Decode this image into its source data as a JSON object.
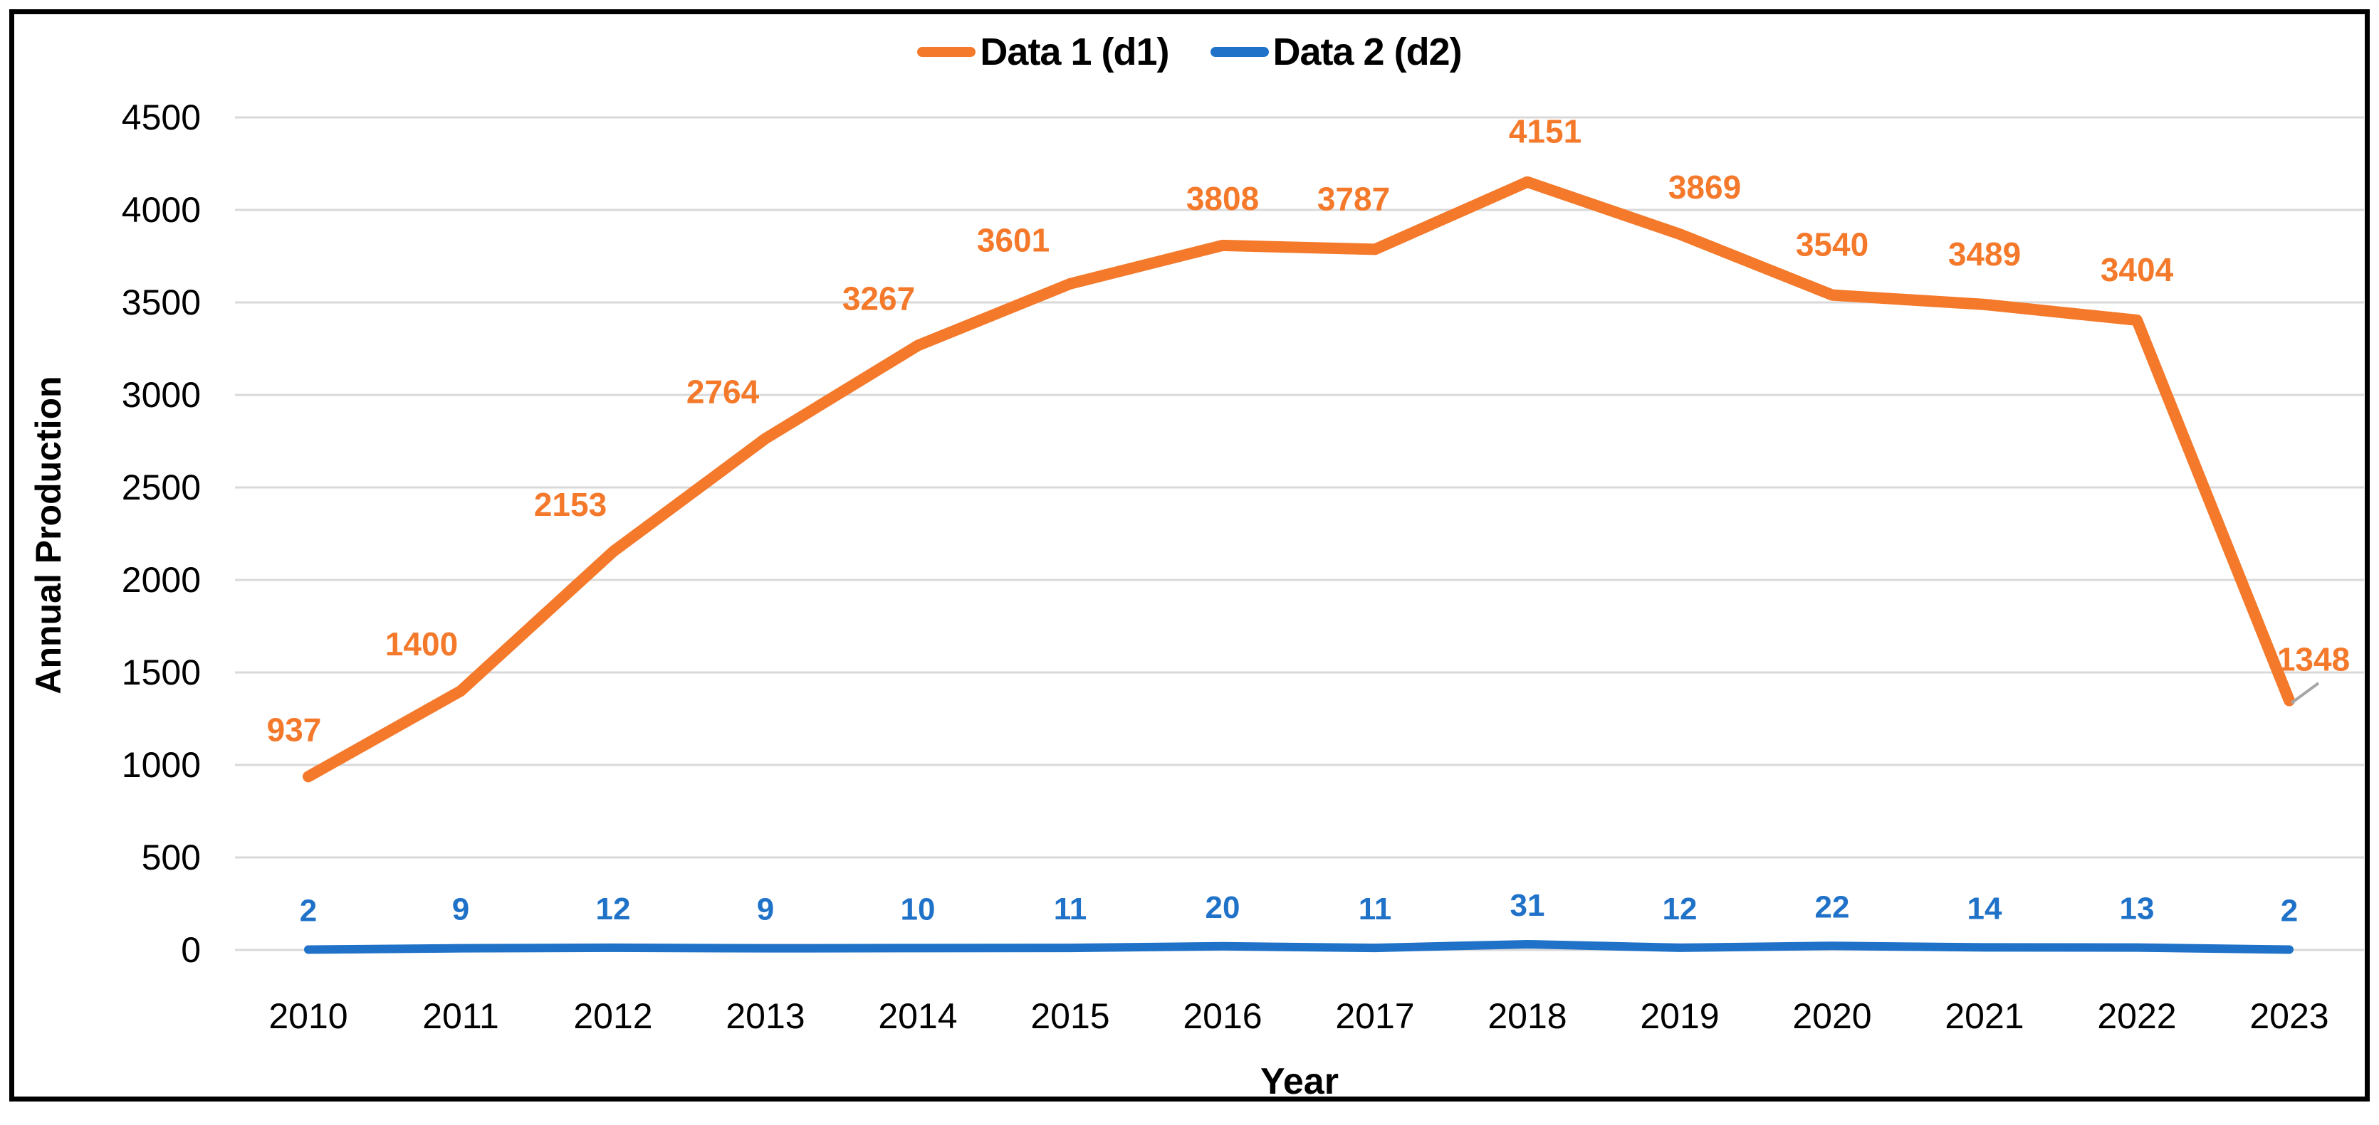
{
  "chart_data": {
    "type": "line",
    "title": "",
    "xlabel": "Year",
    "ylabel": "Annual Production",
    "categories": [
      "2010",
      "2011",
      "2012",
      "2013",
      "2014",
      "2015",
      "2016",
      "2017",
      "2018",
      "2019",
      "2020",
      "2021",
      "2022",
      "2023"
    ],
    "series": [
      {
        "name": "Data 1 (d1)",
        "color": "#F4792B",
        "values": [
          937,
          1400,
          2153,
          2764,
          3267,
          3601,
          3808,
          3787,
          4151,
          3869,
          3540,
          3489,
          3404,
          1348
        ]
      },
      {
        "name": "Data 2 (d2)",
        "color": "#1F72C8",
        "values": [
          2,
          9,
          12,
          9,
          10,
          11,
          20,
          11,
          31,
          12,
          22,
          14,
          13,
          2
        ]
      }
    ],
    "ylim": [
      0,
      4500
    ],
    "y_ticks": [
      0,
      500,
      1000,
      1500,
      2000,
      2500,
      3000,
      3500,
      4000,
      4500
    ],
    "grid": "horizontal",
    "legend_position": "top-center",
    "colors": {
      "gridline": "#D9D9D9",
      "tick_text": "#000000",
      "leader_line": "#A6A6A6",
      "frame_border": "#000000"
    }
  }
}
